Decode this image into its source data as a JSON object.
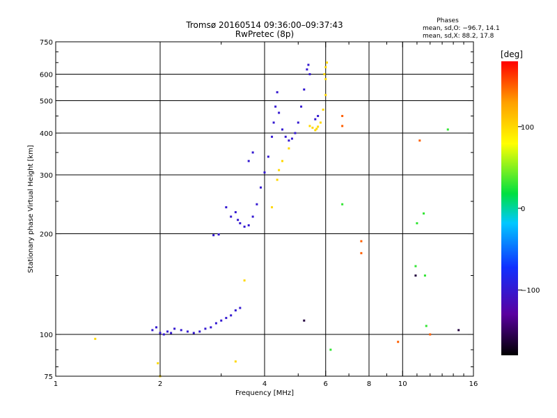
{
  "chart_data": {
    "type": "scatter",
    "title": "Tromsø 20160514 09:36:00–09:37:43",
    "subtitle": "RwPretec (8p)",
    "xlabel": "Frequency [MHz]",
    "ylabel": "Stationary phase Virtual Height [km]",
    "x_scale": "log",
    "y_scale": "log",
    "xlim": [
      1,
      16
    ],
    "ylim": [
      75,
      750
    ],
    "x_ticks": [
      1,
      2,
      4,
      6,
      8,
      10,
      16
    ],
    "x_tick_labels": [
      "1",
      "2",
      "4",
      "6",
      "8",
      "10",
      "16"
    ],
    "x_grid": [
      2,
      4,
      6,
      8,
      10
    ],
    "y_ticks": [
      75,
      100,
      200,
      300,
      400,
      500,
      600,
      750
    ],
    "y_tick_labels": [
      "75",
      "100",
      "200",
      "300",
      "400",
      "500",
      "600",
      "750"
    ],
    "y_grid": [
      100,
      200,
      300,
      400,
      500,
      600
    ],
    "grid": true,
    "legend": {
      "title": "Phases",
      "lines": [
        "mean, sd,O: −96.7, 14.1",
        "mean, sd,X:  88.2, 17.8"
      ],
      "placement": "top-right"
    },
    "colorbar": {
      "label": "[deg]",
      "range": [
        -180,
        180
      ],
      "ticks": [
        100,
        0,
        -100
      ],
      "tick_labels": [
        "100",
        "0",
        "−100"
      ],
      "colors": [
        "#000000",
        "#5a00a0",
        "#1030ff",
        "#00c8ff",
        "#00e040",
        "#ffff00",
        "#ffa000",
        "#ff0000"
      ]
    },
    "series": [
      {
        "color_phase": -100,
        "points": [
          [
            1.9,
            103
          ],
          [
            1.95,
            105
          ],
          [
            2.0,
            101
          ],
          [
            2.05,
            100
          ],
          [
            2.1,
            102
          ],
          [
            2.15,
            101
          ],
          [
            2.2,
            104
          ],
          [
            2.3,
            103
          ],
          [
            2.4,
            102
          ],
          [
            2.5,
            101
          ],
          [
            2.6,
            102
          ],
          [
            2.7,
            104
          ],
          [
            2.8,
            105
          ],
          [
            2.9,
            108
          ],
          [
            3.0,
            110
          ],
          [
            3.1,
            112
          ],
          [
            3.2,
            114
          ],
          [
            3.3,
            118
          ],
          [
            3.4,
            120
          ],
          [
            2.85,
            198
          ],
          [
            2.95,
            199
          ],
          [
            3.1,
            240
          ],
          [
            3.2,
            225
          ],
          [
            3.3,
            232
          ],
          [
            3.35,
            220
          ],
          [
            3.4,
            215
          ],
          [
            3.5,
            210
          ],
          [
            3.6,
            212
          ],
          [
            3.7,
            225
          ],
          [
            3.8,
            245
          ],
          [
            3.9,
            275
          ],
          [
            4.0,
            305
          ],
          [
            4.1,
            340
          ],
          [
            4.2,
            390
          ],
          [
            4.25,
            430
          ],
          [
            4.3,
            480
          ],
          [
            4.35,
            530
          ],
          [
            4.4,
            460
          ],
          [
            4.5,
            410
          ],
          [
            4.6,
            390
          ],
          [
            4.7,
            380
          ],
          [
            4.8,
            385
          ],
          [
            4.9,
            400
          ],
          [
            5.0,
            430
          ],
          [
            5.1,
            480
          ],
          [
            5.2,
            540
          ],
          [
            5.3,
            620
          ],
          [
            5.35,
            640
          ],
          [
            5.4,
            600
          ],
          [
            3.6,
            330
          ],
          [
            3.7,
            350
          ],
          [
            5.6,
            440
          ],
          [
            5.7,
            450
          ]
        ]
      },
      {
        "color_phase": 100,
        "points": [
          [
            1.3,
            97
          ],
          [
            1.97,
            82
          ],
          [
            2.0,
            75
          ],
          [
            4.2,
            240
          ],
          [
            4.35,
            290
          ],
          [
            4.4,
            310
          ],
          [
            4.5,
            330
          ],
          [
            4.7,
            360
          ],
          [
            5.4,
            420
          ],
          [
            5.5,
            415
          ],
          [
            5.6,
            408
          ],
          [
            5.65,
            412
          ],
          [
            5.7,
            418
          ],
          [
            5.8,
            430
          ],
          [
            5.9,
            470
          ],
          [
            6.0,
            520
          ],
          [
            6.0,
            580
          ],
          [
            6.0,
            630
          ],
          [
            6.05,
            650
          ],
          [
            5.95,
            600
          ],
          [
            3.3,
            83
          ],
          [
            3.5,
            145
          ]
        ]
      },
      {
        "color_phase": 150,
        "points": [
          [
            6.7,
            450
          ],
          [
            6.7,
            420
          ],
          [
            7.6,
            190
          ],
          [
            7.6,
            175
          ],
          [
            9.7,
            95
          ],
          [
            11.2,
            380
          ],
          [
            12.0,
            100
          ]
        ]
      },
      {
        "color_phase": 30,
        "points": [
          [
            6.2,
            90
          ],
          [
            6.7,
            245
          ],
          [
            11.0,
            215
          ],
          [
            11.5,
            230
          ],
          [
            13.5,
            410
          ],
          [
            11.6,
            150
          ],
          [
            10.9,
            160
          ],
          [
            11.7,
            106
          ]
        ]
      },
      {
        "color_phase": -160,
        "points": [
          [
            5.2,
            110
          ],
          [
            10.9,
            150
          ],
          [
            14.5,
            103
          ]
        ]
      }
    ]
  }
}
